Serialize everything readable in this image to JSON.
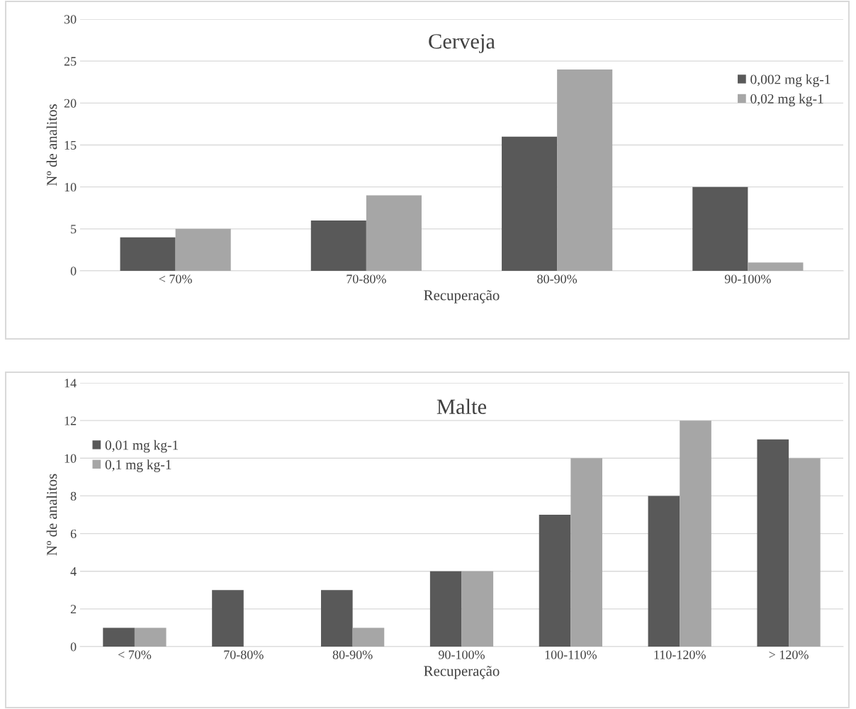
{
  "chart_data": [
    {
      "type": "bar",
      "title": "Cerveja",
      "xlabel": "Recuperação",
      "ylabel": "Nº de analitos",
      "categories": [
        "< 70%",
        "70-80%",
        "80-90%",
        "90-100%"
      ],
      "series": [
        {
          "name": "0,002 mg kg-1",
          "color": "#595959",
          "values": [
            4,
            6,
            16,
            10
          ]
        },
        {
          "name": "0,02 mg kg-1",
          "color": "#a6a6a6",
          "values": [
            5,
            9,
            24,
            1
          ]
        }
      ],
      "ylim": [
        0,
        30
      ],
      "yticks": [
        0,
        5,
        10,
        15,
        20,
        25,
        30
      ],
      "grid": "y",
      "legend": "top right"
    },
    {
      "type": "bar",
      "title": "Malte",
      "xlabel": "Recuperação",
      "ylabel": "Nº de analitos",
      "categories": [
        "< 70%",
        "70-80%",
        "80-90%",
        "90-100%",
        "100-110%",
        "110-120%",
        "> 120%"
      ],
      "series": [
        {
          "name": "0,01 mg kg-1",
          "color": "#595959",
          "values": [
            1,
            3,
            3,
            4,
            7,
            8,
            11
          ]
        },
        {
          "name": "0,1 mg kg-1",
          "color": "#a6a6a6",
          "values": [
            1,
            0,
            1,
            4,
            10,
            12,
            10
          ]
        }
      ],
      "ylim": [
        0,
        14
      ],
      "yticks": [
        0,
        2,
        4,
        6,
        8,
        10,
        12,
        14
      ],
      "grid": "y",
      "legend": "top left"
    }
  ]
}
